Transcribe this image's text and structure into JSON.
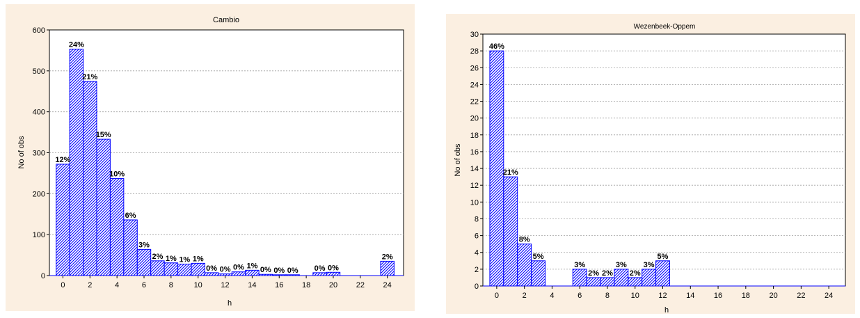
{
  "colors": {
    "panel_bg": "#fbefe1",
    "plot_bg": "#ffffff",
    "bar_stroke": "#0000ff",
    "bar_hatch": "#0000ff",
    "grid": "#a0a0a0"
  },
  "chart_data": [
    {
      "type": "bar",
      "title": "Cambio",
      "xlabel": "h",
      "ylabel": "No of obs",
      "xlim": [
        -1,
        25.2
      ],
      "ylim": [
        0,
        600
      ],
      "yticks": [
        0,
        100,
        200,
        300,
        400,
        500,
        600
      ],
      "xticks": [
        0,
        2,
        4,
        6,
        8,
        10,
        12,
        14,
        16,
        18,
        20,
        22,
        24
      ],
      "grid": true,
      "bins": [
        {
          "x": 0,
          "value": 272,
          "label": "12%"
        },
        {
          "x": 1,
          "value": 553,
          "label": "24%"
        },
        {
          "x": 2,
          "value": 474,
          "label": "21%"
        },
        {
          "x": 3,
          "value": 333,
          "label": "15%"
        },
        {
          "x": 4,
          "value": 237,
          "label": "10%"
        },
        {
          "x": 5,
          "value": 136,
          "label": "6%"
        },
        {
          "x": 6,
          "value": 64,
          "label": "3%"
        },
        {
          "x": 7,
          "value": 36,
          "label": "2%"
        },
        {
          "x": 8,
          "value": 31,
          "label": "1%"
        },
        {
          "x": 9,
          "value": 28,
          "label": "1%"
        },
        {
          "x": 10,
          "value": 30,
          "label": "1%"
        },
        {
          "x": 11,
          "value": 7,
          "label": "0%"
        },
        {
          "x": 12,
          "value": 4,
          "label": "0%"
        },
        {
          "x": 13,
          "value": 9,
          "label": "0%"
        },
        {
          "x": 14,
          "value": 13,
          "label": "1%"
        },
        {
          "x": 15,
          "value": 3,
          "label": "0%"
        },
        {
          "x": 16,
          "value": 2,
          "label": "0%"
        },
        {
          "x": 17,
          "value": 2,
          "label": "0%"
        },
        {
          "x": 19,
          "value": 7,
          "label": "0%"
        },
        {
          "x": 20,
          "value": 8,
          "label": "0%"
        },
        {
          "x": 24,
          "value": 35,
          "label": "2%"
        }
      ]
    },
    {
      "type": "bar",
      "title": "Wezenbeek-Oppem",
      "xlabel": "h",
      "ylabel": "No of obs",
      "xlim": [
        -1,
        25.2
      ],
      "ylim": [
        0,
        30
      ],
      "yticks": [
        0,
        2,
        4,
        6,
        8,
        10,
        12,
        14,
        16,
        18,
        20,
        22,
        24,
        26,
        28,
        30
      ],
      "xticks": [
        0,
        2,
        4,
        6,
        8,
        10,
        12,
        14,
        16,
        18,
        20,
        22,
        24
      ],
      "grid": true,
      "bins": [
        {
          "x": 0,
          "value": 28,
          "label": "46%"
        },
        {
          "x": 1,
          "value": 13,
          "label": "21%"
        },
        {
          "x": 2,
          "value": 5,
          "label": "8%"
        },
        {
          "x": 3,
          "value": 3,
          "label": "5%"
        },
        {
          "x": 6,
          "value": 2,
          "label": "3%"
        },
        {
          "x": 7,
          "value": 1,
          "label": "2%"
        },
        {
          "x": 8,
          "value": 1,
          "label": "2%"
        },
        {
          "x": 9,
          "value": 2,
          "label": "3%"
        },
        {
          "x": 10,
          "value": 1,
          "label": "2%"
        },
        {
          "x": 11,
          "value": 2,
          "label": "3%"
        },
        {
          "x": 12,
          "value": 3,
          "label": "5%"
        }
      ]
    }
  ]
}
